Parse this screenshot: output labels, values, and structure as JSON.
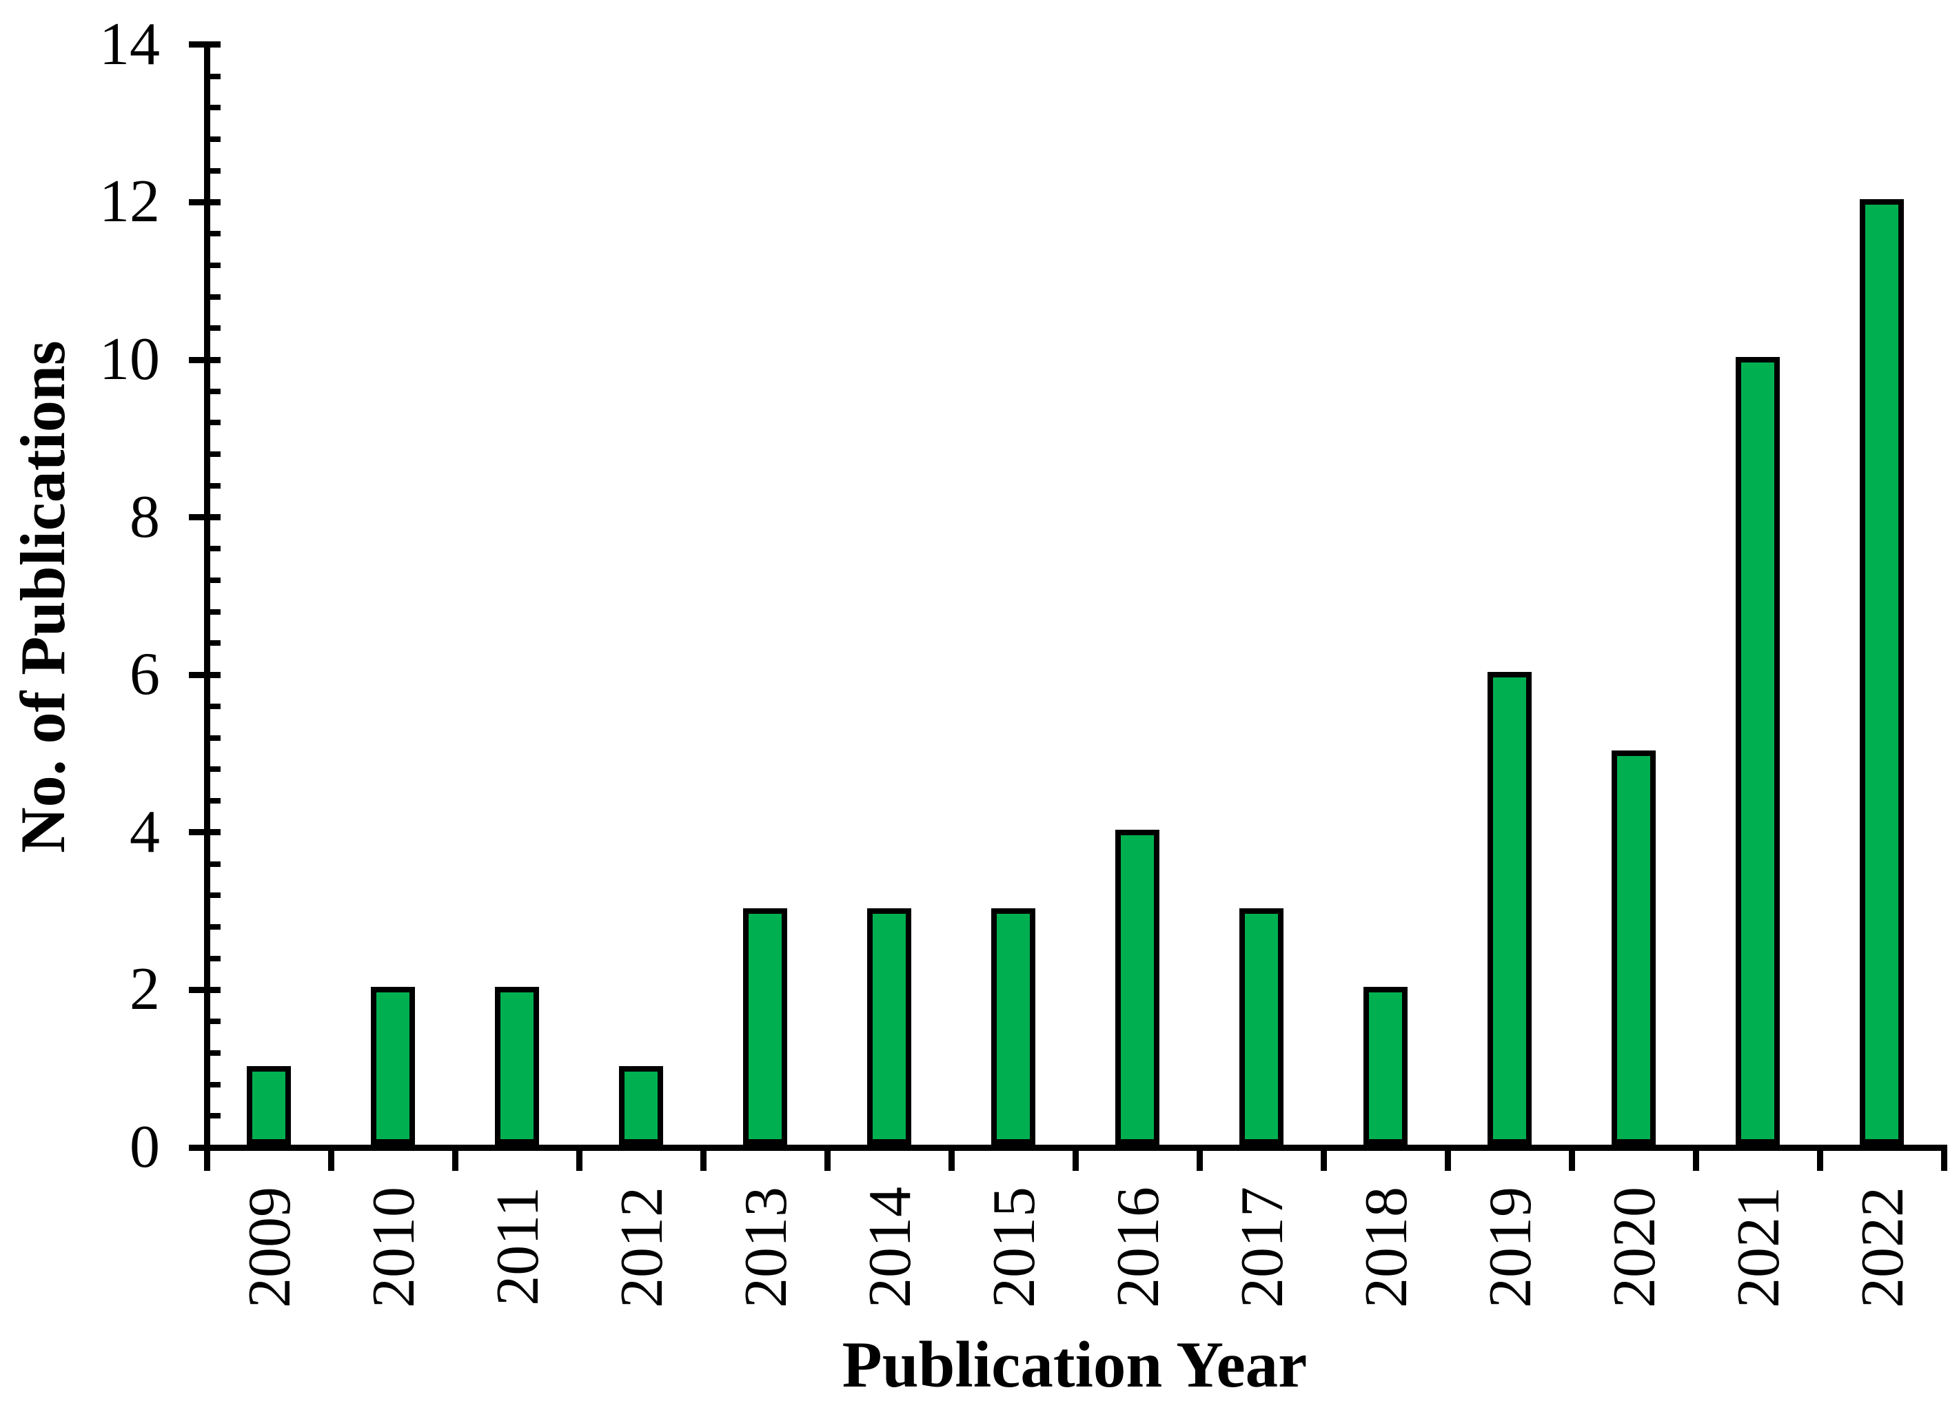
{
  "chart_data": {
    "type": "bar",
    "title": "",
    "categories": [
      "2009",
      "2010",
      "2011",
      "2012",
      "2013",
      "2014",
      "2015",
      "2016",
      "2017",
      "2018",
      "2019",
      "2020",
      "2021",
      "2022"
    ],
    "values": [
      1,
      2,
      2,
      1,
      3,
      3,
      3,
      4,
      3,
      2,
      6,
      5,
      10,
      12
    ],
    "xlabel": "Publication Year",
    "ylabel": "No. of Publications",
    "ylim": [
      0,
      14
    ],
    "y_major_ticks": [
      0,
      2,
      4,
      6,
      8,
      10,
      12,
      14
    ],
    "y_minor_step": 0.4,
    "grid": false,
    "legend": false,
    "bar_fill_color": "#00B050",
    "bar_border_color": "#000000",
    "axis_color": "#000000"
  }
}
